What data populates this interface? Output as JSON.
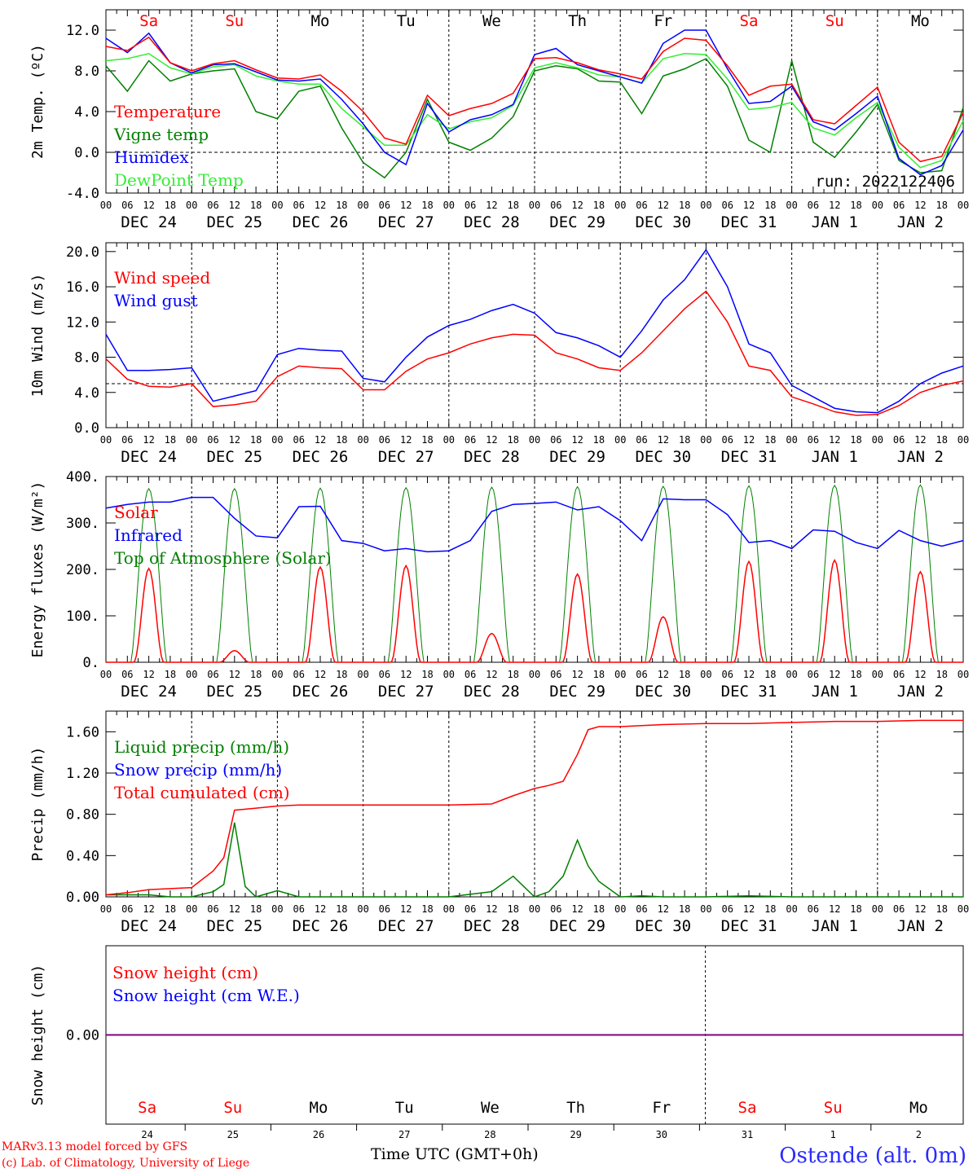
{
  "colors": {
    "red": "#ff0000",
    "green": "#008000",
    "blue": "#0000ff",
    "lightgreen": "#33ee33",
    "purple": "#800080",
    "axis": "#000000"
  },
  "days": [
    "Sa",
    "Su",
    "Mo",
    "Tu",
    "We",
    "Th",
    "Fr",
    "Sa",
    "Su",
    "Mo"
  ],
  "day_colors": [
    "#ff0000",
    "#ff0000",
    "#000000",
    "#000000",
    "#000000",
    "#000000",
    "#000000",
    "#ff0000",
    "#ff0000",
    "#000000"
  ],
  "date_labels": [
    "DEC 24",
    "DEC 25",
    "DEC 26",
    "DEC 27",
    "DEC 28",
    "DEC 29",
    "DEC 30",
    "DEC 31",
    "JAN  1",
    "JAN  2"
  ],
  "hour_labels": [
    "00",
    "06",
    "12",
    "18"
  ],
  "bottom_dates": [
    "24",
    "25",
    "26",
    "27",
    "28",
    "29",
    "30",
    "31",
    "1",
    "2"
  ],
  "footer": {
    "credit1": "MARv3.13 model forced by GFS",
    "credit2": "(c) Lab. of Climatology, University of Liege",
    "station": "Ostende (alt. 0m)",
    "xtitle": "Time UTC (GMT+0h)"
  },
  "chart_data": [
    {
      "type": "line",
      "ylabel": "2m Temp. (ºC)",
      "ylim": [
        -4,
        14
      ],
      "yticks": [
        "12.0",
        "8.0",
        "4.0",
        "0.0",
        "-4.0"
      ],
      "ytick_values": [
        12,
        8,
        4,
        0,
        -4
      ],
      "ref_line": 0,
      "annotation": "run: 2022122406",
      "x_hours": [
        0,
        6,
        12,
        18,
        24,
        30,
        36,
        42,
        48,
        54,
        60,
        66,
        72,
        78,
        84,
        90,
        96,
        102,
        108,
        114,
        120,
        126,
        132,
        138,
        144,
        150,
        156,
        162,
        168,
        174,
        180,
        186,
        192,
        198,
        204,
        210,
        216,
        222,
        228,
        234,
        240
      ],
      "series": [
        {
          "name": "Temperature",
          "color": "#ff0000",
          "values": [
            10.4,
            10.0,
            11.3,
            8.8,
            8.0,
            8.7,
            9.0,
            8.1,
            7.3,
            7.2,
            7.6,
            6.0,
            4.0,
            1.4,
            0.8,
            5.6,
            3.6,
            4.3,
            4.8,
            5.8,
            9.2,
            9.3,
            8.8,
            8.1,
            7.7,
            7.2,
            9.9,
            11.2,
            11.0,
            8.5,
            5.6,
            6.5,
            6.7,
            3.2,
            2.8,
            4.6,
            6.4,
            1.0,
            -0.9,
            -0.4,
            3.9
          ]
        },
        {
          "name": "Vigne temp",
          "color": "#008000",
          "values": [
            8.5,
            6.0,
            9.0,
            7.0,
            7.7,
            8.0,
            8.2,
            4.0,
            3.3,
            6.0,
            6.5,
            2.4,
            -1.0,
            -2.5,
            0.0,
            5.2,
            1.0,
            0.2,
            1.4,
            3.5,
            8.0,
            8.5,
            8.2,
            7.0,
            6.9,
            3.8,
            7.5,
            8.2,
            9.2,
            6.5,
            1.2,
            0.0,
            9.0,
            1.0,
            -0.5,
            2.0,
            4.7,
            -0.8,
            -2.0,
            -1.8,
            4.4
          ]
        },
        {
          "name": "Humidex",
          "color": "#0000ff",
          "values": [
            11.2,
            9.8,
            11.7,
            8.8,
            7.8,
            8.6,
            8.7,
            7.9,
            7.1,
            7.0,
            7.2,
            5.2,
            2.8,
            0.0,
            -1.2,
            4.8,
            2.0,
            3.2,
            3.7,
            4.7,
            9.6,
            10.2,
            8.6,
            8.0,
            7.4,
            6.8,
            10.7,
            12.0,
            12.0,
            8.2,
            4.8,
            5.0,
            6.5,
            3.0,
            2.2,
            3.8,
            5.5,
            -0.6,
            -2.2,
            -1.3,
            2.2
          ]
        },
        {
          "name": "DewPoint Temp",
          "color": "#33ee33",
          "values": [
            9.0,
            9.2,
            9.7,
            8.3,
            7.7,
            8.4,
            8.6,
            7.5,
            7.0,
            6.7,
            6.7,
            4.3,
            2.5,
            0.7,
            0.7,
            3.7,
            2.3,
            3.0,
            3.4,
            4.6,
            8.3,
            8.8,
            8.3,
            7.6,
            7.4,
            6.8,
            9.2,
            9.7,
            9.6,
            7.2,
            4.2,
            4.4,
            4.9,
            2.4,
            1.7,
            3.4,
            4.9,
            0.5,
            -1.5,
            -0.8,
            3.1
          ]
        }
      ]
    },
    {
      "type": "line",
      "ylabel": "10m Wind (m/s)",
      "ylim": [
        0,
        21
      ],
      "yticks": [
        "20.0",
        "16.0",
        "12.0",
        "8.0",
        "4.0",
        "0.0"
      ],
      "ytick_values": [
        20,
        16,
        12,
        8,
        4,
        0
      ],
      "ref_line": 5,
      "x_hours": [
        0,
        6,
        12,
        18,
        24,
        30,
        36,
        42,
        48,
        54,
        60,
        66,
        72,
        78,
        84,
        90,
        96,
        102,
        108,
        114,
        120,
        126,
        132,
        138,
        144,
        150,
        156,
        162,
        168,
        174,
        180,
        186,
        192,
        198,
        204,
        210,
        216,
        222,
        228,
        234,
        240
      ],
      "series": [
        {
          "name": "Wind speed",
          "color": "#ff0000",
          "values": [
            7.8,
            5.5,
            4.7,
            4.6,
            5.0,
            2.4,
            2.6,
            3.0,
            5.8,
            7.0,
            6.8,
            6.7,
            4.3,
            4.3,
            6.4,
            7.8,
            8.5,
            9.5,
            10.2,
            10.6,
            10.5,
            8.5,
            7.8,
            6.8,
            6.5,
            8.5,
            11.0,
            13.5,
            15.5,
            12.0,
            7.0,
            6.5,
            3.5,
            2.7,
            1.8,
            1.4,
            1.5,
            2.5,
            4.0,
            4.8,
            5.3
          ]
        },
        {
          "name": "Wind gust",
          "color": "#0000ff",
          "values": [
            10.6,
            6.5,
            6.5,
            6.6,
            6.8,
            3.0,
            3.6,
            4.2,
            8.3,
            9.0,
            8.8,
            8.7,
            5.6,
            5.2,
            8.0,
            10.3,
            11.6,
            12.3,
            13.3,
            14.0,
            13.0,
            10.8,
            10.2,
            9.3,
            8.0,
            11.0,
            14.5,
            16.8,
            20.2,
            16.0,
            9.5,
            8.5,
            4.8,
            3.5,
            2.2,
            1.8,
            1.7,
            3.0,
            5.0,
            6.2,
            7.0
          ]
        }
      ]
    },
    {
      "type": "line",
      "ylabel": "Energy fluxes (W/m²)",
      "ylim": [
        0,
        400
      ],
      "yticks": [
        "400.",
        "300.",
        "200.",
        "100.",
        "0."
      ],
      "ytick_values": [
        400,
        300,
        200,
        100,
        0
      ],
      "x_hours": [
        0,
        6,
        12,
        18,
        24,
        30,
        36,
        42,
        48,
        54,
        60,
        66,
        72,
        78,
        84,
        90,
        96,
        102,
        108,
        114,
        120,
        126,
        132,
        138,
        144,
        150,
        156,
        162,
        168,
        174,
        180,
        186,
        192,
        198,
        204,
        210,
        216,
        222,
        228,
        234,
        240
      ],
      "solar_peaks": [
        202,
        25,
        205,
        208,
        62,
        190,
        98,
        217,
        220,
        195
      ],
      "toa_peaks": [
        374,
        374,
        375,
        376,
        377,
        378,
        379,
        380,
        381,
        382
      ],
      "series": [
        {
          "name": "Solar",
          "color": "#ff0000",
          "values": []
        },
        {
          "name": "Infrared",
          "color": "#0000ff",
          "values": [
            332,
            340,
            345,
            345,
            355,
            355,
            310,
            272,
            268,
            335,
            336,
            262,
            256,
            240,
            245,
            238,
            240,
            262,
            325,
            340,
            342,
            345,
            328,
            335,
            305,
            262,
            352,
            350,
            350,
            318,
            258,
            262,
            245,
            285,
            282,
            258,
            245,
            284,
            262,
            250,
            262
          ]
        },
        {
          "name": "Top of Atmosphere (Solar)",
          "color": "#008000",
          "values": []
        }
      ]
    },
    {
      "type": "line",
      "ylabel": "Precip (mm/h)",
      "ylim": [
        0,
        1.8
      ],
      "yticks": [
        "1.60",
        "1.20",
        "0.80",
        "0.40",
        "0.00"
      ],
      "ytick_values": [
        1.6,
        1.2,
        0.8,
        0.4,
        0
      ],
      "x_hours": [
        0,
        6,
        12,
        18,
        24,
        30,
        33,
        36,
        39,
        42,
        48,
        54,
        60,
        72,
        84,
        96,
        108,
        114,
        120,
        124,
        128,
        132,
        135,
        138,
        144,
        150,
        156,
        168,
        180,
        192,
        204,
        216,
        228,
        240
      ],
      "series": [
        {
          "name": "Liquid precip (mm/h)",
          "color": "#008000",
          "values": [
            0.02,
            0.02,
            0.02,
            0.0,
            0.0,
            0.05,
            0.12,
            0.72,
            0.1,
            0.0,
            0.06,
            0.0,
            0.0,
            0.0,
            0.0,
            0.0,
            0.05,
            0.2,
            0.0,
            0.05,
            0.2,
            0.55,
            0.3,
            0.15,
            0.0,
            0.01,
            0.0,
            0.0,
            0.01,
            0.0,
            0.0,
            0.0,
            0.0,
            0.0
          ]
        },
        {
          "name": "Snow precip (mm/h)",
          "color": "#0000ff",
          "values": []
        },
        {
          "name": "Total cumulated (cm)",
          "color": "#ff0000",
          "values": [
            0.02,
            0.04,
            0.07,
            0.08,
            0.09,
            0.25,
            0.38,
            0.84,
            0.85,
            0.86,
            0.88,
            0.89,
            0.89,
            0.89,
            0.89,
            0.89,
            0.9,
            0.98,
            1.05,
            1.08,
            1.12,
            1.38,
            1.62,
            1.65,
            1.65,
            1.66,
            1.67,
            1.68,
            1.68,
            1.69,
            1.7,
            1.7,
            1.71,
            1.71
          ]
        }
      ]
    },
    {
      "type": "line",
      "ylabel": "Snow height (cm)",
      "ylim": [
        -1,
        1
      ],
      "yticks": [
        "0.00"
      ],
      "ytick_values": [
        0
      ],
      "series": [
        {
          "name": "Snow height (cm)",
          "color": "#ff0000",
          "values": [
            0,
            0
          ]
        },
        {
          "name": "Snow height (cm W.E.)",
          "color": "#0000ff",
          "values": [
            0,
            0
          ]
        }
      ]
    }
  ]
}
